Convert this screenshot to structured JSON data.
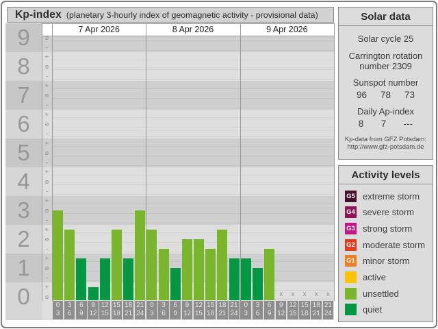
{
  "chart_data": {
    "type": "bar",
    "title": "Kp-index",
    "subtitle": "(planetary 3-hourly index of geomagnetic activity - provisional data)",
    "ylabel": "Kp",
    "y_ticks": [
      9,
      8,
      7,
      6,
      5,
      4,
      3,
      2,
      1,
      0
    ],
    "y_sublevel_marks": [
      "o",
      "+",
      "-"
    ],
    "ylim": [
      0,
      9
    ],
    "missing_marker": "x",
    "time_slots": [
      [
        "0",
        "3"
      ],
      [
        "3",
        "6"
      ],
      [
        "6",
        "9"
      ],
      [
        "9",
        "12"
      ],
      [
        "12",
        "15"
      ],
      [
        "15",
        "18"
      ],
      [
        "18",
        "21"
      ],
      [
        "21",
        "24"
      ]
    ],
    "days": [
      {
        "date": "7 Apr 2026",
        "kp_labels": [
          "3o",
          "2+",
          "1+",
          "0+",
          "1+",
          "2+",
          "1+",
          "3o"
        ],
        "values": [
          3.0,
          2.33,
          1.33,
          0.33,
          1.33,
          2.33,
          1.33,
          3.0
        ],
        "levels": [
          "unsettled",
          "unsettled",
          "quiet",
          "quiet",
          "quiet",
          "unsettled",
          "quiet",
          "unsettled"
        ]
      },
      {
        "date": "8 Apr 2026",
        "kp_labels": [
          "2+",
          "2-",
          "1o",
          "2o",
          "2o",
          "2-",
          "2+",
          "1+"
        ],
        "values": [
          2.33,
          1.67,
          1.0,
          2.0,
          2.0,
          1.67,
          2.33,
          1.33
        ],
        "levels": [
          "unsettled",
          "unsettled",
          "quiet",
          "unsettled",
          "unsettled",
          "unsettled",
          "unsettled",
          "quiet"
        ]
      },
      {
        "date": "9 Apr 2026",
        "kp_labels": [
          "1+",
          "1o",
          "2-",
          null,
          null,
          null,
          null,
          null
        ],
        "values": [
          1.33,
          1.0,
          1.67,
          null,
          null,
          null,
          null,
          null
        ],
        "levels": [
          "quiet",
          "quiet",
          "unsettled",
          null,
          null,
          null,
          null,
          null
        ]
      }
    ]
  },
  "solar": {
    "header": "Solar data",
    "cycle": "Solar cycle 25",
    "carrington": "Carrington rotation number 2309",
    "sunspot": {
      "label": "Sunspot number",
      "values": [
        "96",
        "78",
        "73"
      ]
    },
    "ap": {
      "label": "Daily Ap-index",
      "values": [
        "8",
        "7",
        "---"
      ]
    },
    "source_line1": "Kp-data from GFZ Potsdam:",
    "source_line2": "http://www.gfz-potsdam.de"
  },
  "activity": {
    "header": "Activity levels",
    "levels": [
      {
        "code": "G5",
        "color": "#49102c",
        "label": "extreme storm"
      },
      {
        "code": "G4",
        "color": "#8f1455",
        "label": "severe storm"
      },
      {
        "code": "G3",
        "color": "#c31584",
        "label": "strong storm"
      },
      {
        "code": "G2",
        "color": "#e23b20",
        "label": "moderate storm"
      },
      {
        "code": "G1",
        "color": "#ec7e23",
        "label": "minor storm"
      },
      {
        "code": "",
        "color": "#f9c401",
        "label": "active"
      },
      {
        "code": "",
        "color": "#7ab62c",
        "label": "unsettled"
      },
      {
        "code": "",
        "color": "#029742",
        "label": "quiet"
      }
    ]
  }
}
